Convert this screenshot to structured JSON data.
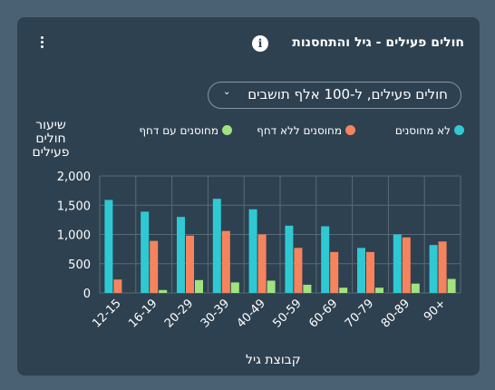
{
  "header": {
    "title": "חולים פעילים - גיל והתחסנות",
    "info_label": "i"
  },
  "dropdown": {
    "selected": "חולים פעילים, ל-100 אלף תושבים",
    "chevron": "⌄"
  },
  "colors": {
    "background": "#4a6174",
    "card": "#2e4150",
    "unvaccinated": "#2fc9d3",
    "vaccinated_no_booster": "#f5845e",
    "vaccinated_booster": "#a0e37f",
    "grid": "#586a79"
  },
  "chart_data": {
    "type": "bar",
    "title": "חולים פעילים - גיל והתחסנות",
    "xlabel": "קבוצת גיל",
    "ylabel": "שיעור חולים פעילים",
    "ylim": [
      0,
      2000
    ],
    "yticks": [
      "2,000",
      "1,500",
      "1,000",
      "500",
      "0"
    ],
    "ytick_values": [
      2000,
      1500,
      1000,
      500,
      0
    ],
    "categories": [
      "12-15",
      "16-19",
      "20-29",
      "30-39",
      "40-49",
      "50-59",
      "60-69",
      "70-79",
      "80-89",
      "90+"
    ],
    "grid": true,
    "legend_position": "top",
    "series": [
      {
        "name": "לא מחוסנים",
        "color": "#2fc9d3",
        "values": [
          1590,
          1390,
          1300,
          1610,
          1430,
          1150,
          1140,
          770,
          1000,
          820
        ]
      },
      {
        "name": "מחוסנים ללא דחף",
        "color": "#f5845e",
        "values": [
          230,
          890,
          980,
          1060,
          1000,
          770,
          700,
          700,
          950,
          880
        ]
      },
      {
        "name": "מחוסנים עם דחף",
        "color": "#a0e37f",
        "values": [
          0,
          50,
          220,
          180,
          210,
          140,
          90,
          90,
          160,
          240
        ]
      }
    ]
  }
}
